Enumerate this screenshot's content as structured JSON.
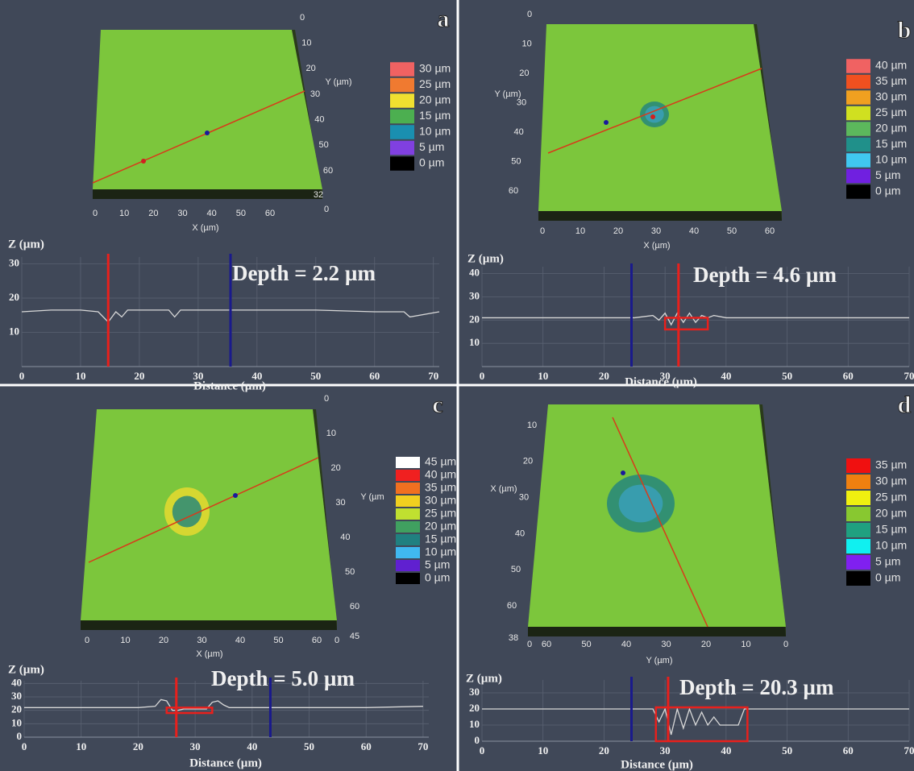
{
  "surfaces": [
    {
      "label": "a",
      "bottom_axis_label": "X (µm)",
      "bottom_ticks": [
        "0",
        "10",
        "20",
        "30",
        "40",
        "50",
        "60"
      ],
      "side_axis_label": "Y (µm)",
      "side_ticks": [
        "0",
        "10",
        "20",
        "30",
        "40",
        "50",
        "60"
      ],
      "z_ticks": [
        "32",
        "0"
      ],
      "legend": [
        {
          "label": "30 µm",
          "color": "#f06262"
        },
        {
          "label": "25 µm",
          "color": "#f07a30"
        },
        {
          "label": "20 µm",
          "color": "#f0e030"
        },
        {
          "label": "15 µm",
          "color": "#4caf50"
        },
        {
          "label": "10 µm",
          "color": "#1a8fb0"
        },
        {
          "label": "5 µm",
          "color": "#8040e0"
        },
        {
          "label": "0 µm",
          "color": "#000000"
        }
      ]
    },
    {
      "label": "b",
      "bottom_axis_label": "X (µm)",
      "bottom_ticks": [
        "0",
        "10",
        "20",
        "30",
        "40",
        "50",
        "60"
      ],
      "side_axis_label": "Y (µm)",
      "side_ticks": [
        "0",
        "10",
        "20",
        "30",
        "40",
        "50",
        "60"
      ],
      "z_ticks": [],
      "legend": [
        {
          "label": "40 µm",
          "color": "#f06262"
        },
        {
          "label": "35 µm",
          "color": "#f05020"
        },
        {
          "label": "30 µm",
          "color": "#f0a020"
        },
        {
          "label": "25 µm",
          "color": "#d0e020"
        },
        {
          "label": "20 µm",
          "color": "#5cb85c"
        },
        {
          "label": "15 µm",
          "color": "#20908a"
        },
        {
          "label": "10 µm",
          "color": "#40c8f0"
        },
        {
          "label": "5 µm",
          "color": "#7020e0"
        },
        {
          "label": "0 µm",
          "color": "#000000"
        }
      ]
    },
    {
      "label": "c",
      "bottom_axis_label": "X (µm)",
      "bottom_ticks": [
        "0",
        "10",
        "20",
        "30",
        "40",
        "50",
        "60"
      ],
      "side_axis_label": "Y (µm",
      "side_ticks": [
        "0",
        "10",
        "20",
        "30",
        "40",
        "50",
        "60"
      ],
      "z_ticks": [
        "0",
        "45"
      ],
      "legend": [
        {
          "label": "45 µm",
          "color": "#ffffff"
        },
        {
          "label": "40 µm",
          "color": "#f02020"
        },
        {
          "label": "35 µm",
          "color": "#f07020"
        },
        {
          "label": "30 µm",
          "color": "#f0d020"
        },
        {
          "label": "25 µm",
          "color": "#c0e030"
        },
        {
          "label": "20 µm",
          "color": "#40a060"
        },
        {
          "label": "15 µm",
          "color": "#208080"
        },
        {
          "label": "10 µm",
          "color": "#40b8f0"
        },
        {
          "label": "5 µm",
          "color": "#6020d0"
        },
        {
          "label": "0 µm",
          "color": "#000000"
        }
      ]
    },
    {
      "label": "d",
      "bottom_axis_label": "Y (µm)",
      "bottom_ticks": [
        "60",
        "50",
        "40",
        "30",
        "20",
        "10",
        "0"
      ],
      "side_axis_label": "X (µm)",
      "side_ticks": [
        "10",
        "20",
        "30",
        "40",
        "50",
        "60"
      ],
      "z_ticks": [
        "38",
        "0"
      ],
      "legend": [
        {
          "label": "35 µm",
          "color": "#f01010"
        },
        {
          "label": "30 µm",
          "color": "#f08010"
        },
        {
          "label": "25 µm",
          "color": "#f0f010"
        },
        {
          "label": "20 µm",
          "color": "#88c830"
        },
        {
          "label": "15 µm",
          "color": "#20a080"
        },
        {
          "label": "10 µm",
          "color": "#10f0f0"
        },
        {
          "label": "5 µm",
          "color": "#8020f0"
        },
        {
          "label": "0 µm",
          "color": "#000000"
        }
      ]
    }
  ],
  "chart_data": [
    {
      "type": "line",
      "y_label": "Z (µm)",
      "x_label": "Distance (µm)",
      "annotation": "Depth = 2.2 µm",
      "grid": true,
      "color": "#d8d8d8",
      "x": [
        0,
        5,
        10,
        13,
        14.7,
        16,
        17,
        18,
        20,
        25,
        26,
        27,
        30,
        35,
        40,
        50,
        60,
        65,
        66,
        71
      ],
      "values": [
        16,
        16.5,
        16.5,
        16,
        13,
        16,
        14.5,
        16.5,
        16.5,
        16.5,
        14.5,
        16.5,
        16.5,
        16.5,
        16.5,
        16.5,
        16,
        16,
        14.5,
        16
      ],
      "xlim": [
        0,
        71
      ],
      "ylim": [
        0,
        32
      ],
      "xticks": [
        0,
        10,
        20,
        30,
        40,
        50,
        60,
        70
      ],
      "yticks": [
        10,
        20,
        30
      ],
      "cursors": [
        {
          "x": 14.7,
          "color": "#e8201c"
        },
        {
          "x": 35.5,
          "color": "#1a1a8c"
        }
      ]
    },
    {
      "type": "line",
      "y_label": "Z (µm)",
      "x_label": "Distance (µm)",
      "annotation": "Depth = 4.6 µm",
      "grid": true,
      "color": "#d8d8d8",
      "x": [
        0,
        10,
        20,
        25,
        28,
        29,
        30,
        31,
        32,
        33,
        34,
        35,
        36,
        37,
        38,
        40,
        50,
        60,
        70
      ],
      "values": [
        21,
        21,
        21,
        21,
        22,
        20,
        23,
        18,
        23,
        19,
        23,
        19,
        22,
        21,
        22,
        21,
        21,
        21,
        21
      ],
      "xlim": [
        0,
        70
      ],
      "ylim": [
        0,
        43
      ],
      "xticks": [
        0,
        10,
        20,
        30,
        40,
        50,
        60,
        70
      ],
      "yticks": [
        10,
        20,
        30,
        40
      ],
      "cursors": [
        {
          "x": 24.5,
          "color": "#1a1a8c"
        },
        {
          "x": 32.2,
          "color": "#e8201c"
        }
      ],
      "box": {
        "x": [
          30,
          37
        ],
        "y": [
          16,
          21
        ],
        "color": "#e8201c"
      }
    },
    {
      "type": "line",
      "y_label": "Z (µm)",
      "x_label": "Distance (µm)",
      "annotation": "Depth = 5.0 µm",
      "grid": true,
      "color": "#d8d8d8",
      "x": [
        0,
        10,
        20,
        23,
        24,
        25,
        26,
        27,
        28,
        30,
        32,
        33,
        34,
        35,
        36,
        40,
        50,
        60,
        70
      ],
      "values": [
        22,
        22,
        22,
        23,
        28,
        27,
        20,
        20,
        21,
        21,
        21,
        26,
        27,
        24,
        22,
        22,
        22,
        22,
        23
      ],
      "xlim": [
        0,
        71
      ],
      "ylim": [
        0,
        42
      ],
      "xticks": [
        0,
        10,
        20,
        30,
        40,
        50,
        60,
        70
      ],
      "yticks": [
        0,
        10,
        20,
        30,
        40
      ],
      "cursors": [
        {
          "x": 26.7,
          "color": "#e8201c"
        },
        {
          "x": 43.2,
          "color": "#1a1a8c"
        }
      ],
      "box": {
        "x": [
          25,
          33
        ],
        "y": [
          18,
          22
        ],
        "color": "#e8201c"
      }
    },
    {
      "type": "line",
      "y_label": "Z (µm)",
      "x_label": "Distance (µm)",
      "annotation": "Depth = 20.3 µm",
      "grid": true,
      "color": "#d8d8d8",
      "x": [
        0,
        10,
        20,
        25,
        28,
        29,
        30,
        31,
        32,
        33,
        34,
        35,
        36,
        37,
        38,
        39,
        40,
        41,
        42,
        43,
        44,
        50,
        60,
        70
      ],
      "values": [
        20,
        20,
        20,
        20,
        20,
        12,
        20,
        4,
        20,
        8,
        20,
        10,
        18,
        10,
        15,
        10,
        10,
        10,
        10,
        20,
        20,
        20,
        20,
        20
      ],
      "xlim": [
        0,
        70
      ],
      "ylim": [
        0,
        38
      ],
      "xticks": [
        0,
        10,
        20,
        30,
        40,
        50,
        60,
        70
      ],
      "yticks": [
        0,
        10,
        20,
        30
      ],
      "cursors": [
        {
          "x": 24.5,
          "color": "#1a1a8c"
        },
        {
          "x": 30.5,
          "color": "#e8201c"
        }
      ],
      "box": {
        "x": [
          28.5,
          43.5
        ],
        "y": [
          0,
          21
        ],
        "color": "#e8201c"
      }
    }
  ]
}
